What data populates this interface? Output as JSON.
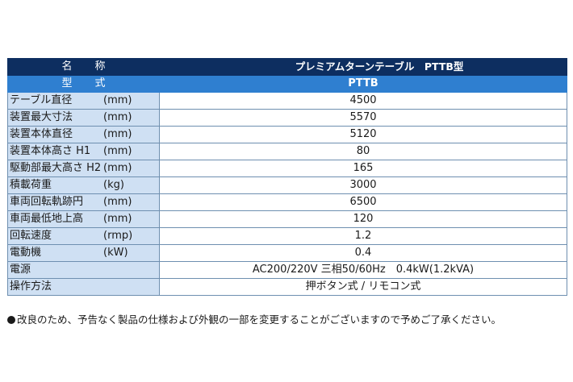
{
  "header": {
    "label": "名称",
    "value": "プレミアムターンテーブル　PTTB型"
  },
  "type_row": {
    "label": "型式",
    "value": "PTTB"
  },
  "rows": [
    {
      "name": "テーブル直径",
      "unit": "(mm)",
      "value": "4500"
    },
    {
      "name": "装置最大寸法",
      "unit": "(mm)",
      "value": "5570"
    },
    {
      "name": "装置本体直径",
      "unit": "(mm)",
      "value": "5120"
    },
    {
      "name": "装置本体高さ H1",
      "unit": "(mm)",
      "value": "80"
    },
    {
      "name": "駆動部最大高さ H2",
      "unit": "(mm)",
      "value": "165"
    },
    {
      "name": "積載荷重",
      "unit": "(kg)",
      "value": "3000"
    },
    {
      "name": "車両回転軌跡円",
      "unit": "(mm)",
      "value": "6500"
    },
    {
      "name": "車両最低地上高",
      "unit": "(mm)",
      "value": "120"
    },
    {
      "name": "回転速度",
      "unit": "(rmp)",
      "value": "1.2"
    },
    {
      "name": "電動機",
      "unit": "(kW)",
      "value": "0.4"
    },
    {
      "name": "電源",
      "unit": "",
      "value": "AC200/220V 三相50/60Hz　0.4kW(1.2kVA)"
    },
    {
      "name": "操作方法",
      "unit": "",
      "value": "押ボタン式 / リモコン式"
    }
  ],
  "note": "改良のため、予告なく製品の仕様および外観の一部を変更することがございますので予めご了承ください。"
}
